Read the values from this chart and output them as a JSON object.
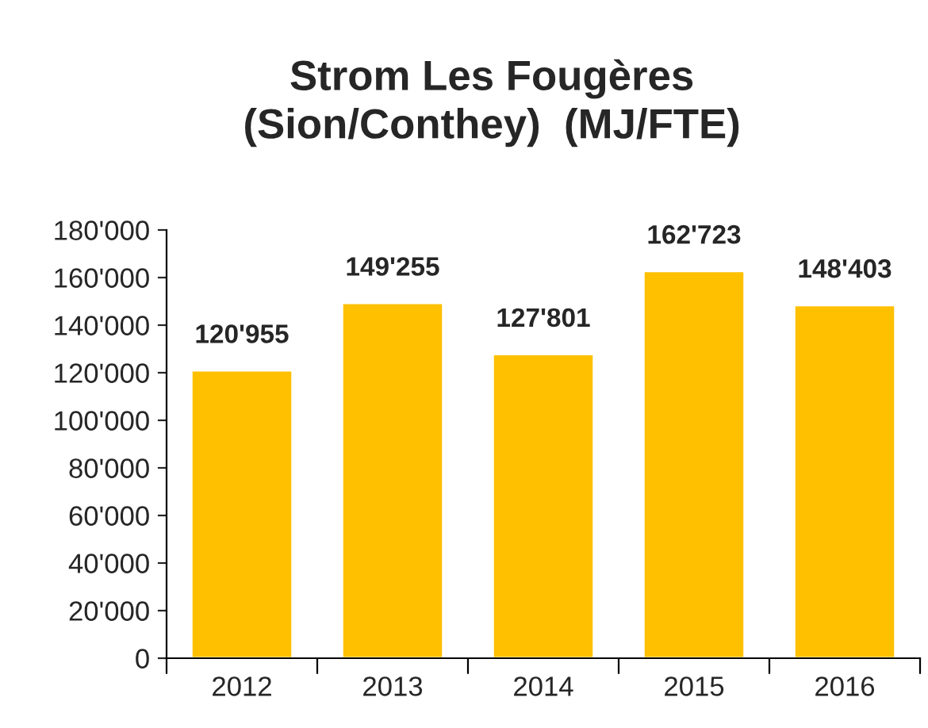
{
  "chart_data": {
    "type": "bar",
    "title": "Strom Les Fougères\n(Sion/Conthey)  (MJ/FTE)",
    "categories": [
      "2012",
      "2013",
      "2014",
      "2015",
      "2016"
    ],
    "values": [
      120955,
      149255,
      127801,
      162723,
      148403
    ],
    "value_labels": [
      "120'955",
      "149'255",
      "127'801",
      "162'723",
      "148'403"
    ],
    "color": "#ffc000",
    "ylim": [
      0,
      180000
    ],
    "yticks": [
      0,
      {
        "value": 20000,
        "label": "20'000"
      },
      {
        "value": 40000,
        "label": "40'000"
      },
      {
        "value": 60000,
        "label": "60'000"
      },
      {
        "value": 80000,
        "label": "80'000"
      },
      {
        "value": 100000,
        "label": "100'000"
      },
      {
        "value": 120000,
        "label": "120'000"
      },
      {
        "value": 140000,
        "label": "140'000"
      },
      {
        "value": 160000,
        "label": "160'000"
      },
      {
        "value": 180000,
        "label": "180'000"
      }
    ],
    "grid": false,
    "legend": false
  }
}
